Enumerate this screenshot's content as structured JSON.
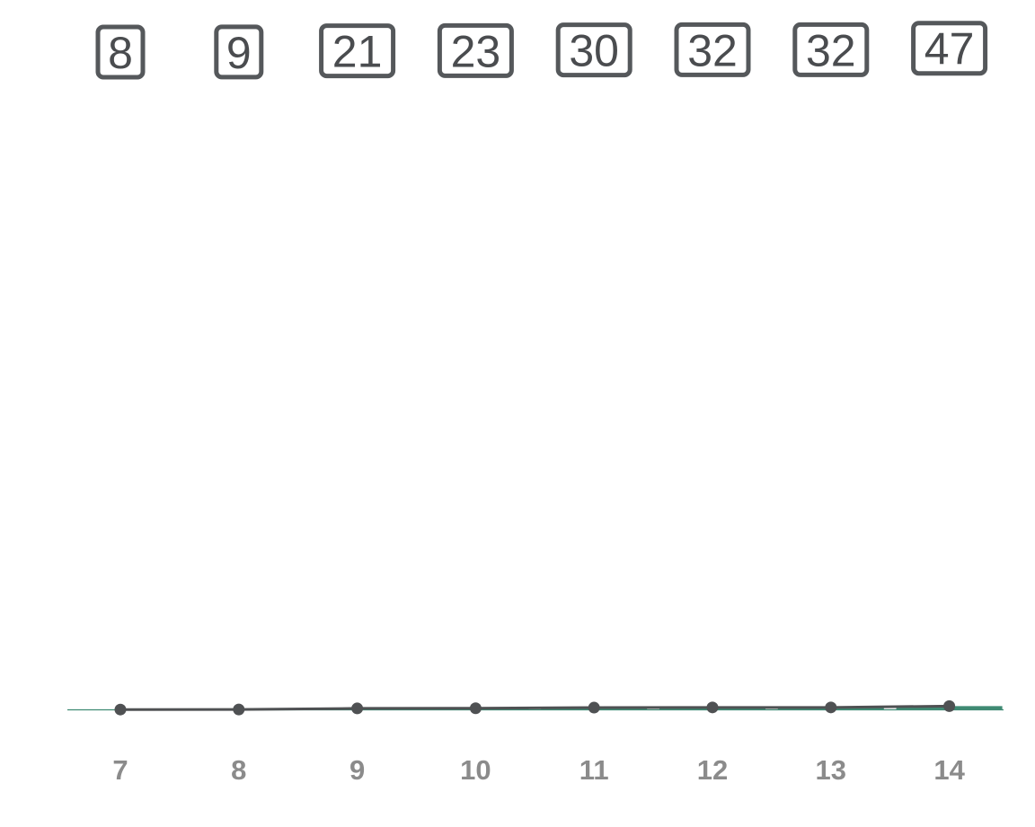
{
  "chart_data": {
    "type": "bar",
    "categories": [
      "7",
      "8",
      "9",
      "10",
      "11",
      "12",
      "13",
      "14"
    ],
    "series": [
      {
        "type": "bar",
        "values": [
          8,
          9,
          21,
          23,
          30,
          32,
          32,
          47
        ]
      },
      {
        "type": "line",
        "values": [
          8,
          9,
          21,
          23,
          30,
          32,
          32,
          47
        ]
      }
    ],
    "data_labels": [
      "8",
      "9",
      "21",
      "23",
      "30",
      "32",
      "32",
      "47"
    ],
    "title": "",
    "xlabel": "",
    "ylabel": "",
    "ylim": [
      0,
      7000
    ],
    "grid": false,
    "legend": "none",
    "colors": {
      "bar": "#3f8a73",
      "line": "#4f5153",
      "label_border": "#55585b",
      "label_text": "#4a4c4f",
      "tick_text": "#8b8b8b"
    }
  }
}
